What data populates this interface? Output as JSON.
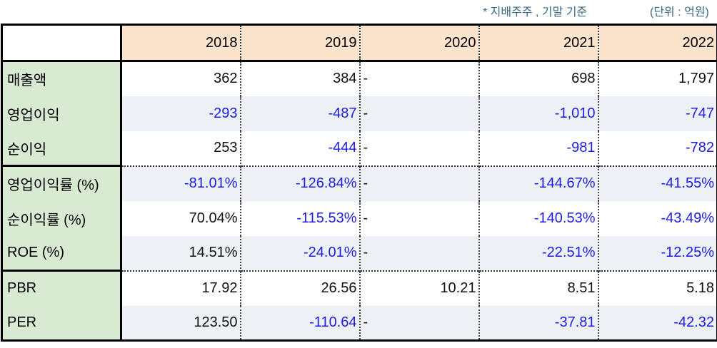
{
  "notes": {
    "basis": "* 지배주주 , 기말 기준",
    "unit": "(단위 : 억원)"
  },
  "table": {
    "years": [
      "2018",
      "2019",
      "2020",
      "2021",
      "2022"
    ],
    "rows": [
      {
        "label": "매출액",
        "values": [
          "362",
          "384",
          "-",
          "698",
          "1,797"
        ]
      },
      {
        "label": "영업이익",
        "values": [
          "-293",
          "-487",
          "-",
          "-1,010",
          "-747"
        ]
      },
      {
        "label": "순이익",
        "values": [
          "253",
          "-444",
          "-",
          "-981",
          "-782"
        ]
      },
      {
        "label": "영업이익률 (%)",
        "values": [
          "-81.01%",
          "-126.84%",
          "-",
          "-144.67%",
          "-41.55%"
        ]
      },
      {
        "label": "순이익률 (%)",
        "values": [
          "70.04%",
          "-115.53%",
          "-",
          "-140.53%",
          "-43.49%"
        ]
      },
      {
        "label": "ROE (%)",
        "values": [
          "14.51%",
          "-24.01%",
          "-",
          "-22.51%",
          "-12.25%"
        ]
      },
      {
        "label": "PBR",
        "values": [
          "17.92",
          "26.56",
          "10.21",
          "8.51",
          "5.18"
        ]
      },
      {
        "label": "PER",
        "values": [
          "123.50",
          "-110.64",
          "-",
          "-37.81",
          "-42.32"
        ]
      }
    ]
  },
  "colors": {
    "negative": "#1c1cf0",
    "positive": "#111111",
    "header_bg": "#fbe3cc",
    "label_bg": "#d9ead3",
    "shade_bg": "#edf0f4",
    "note_text": "#3d6a87"
  }
}
